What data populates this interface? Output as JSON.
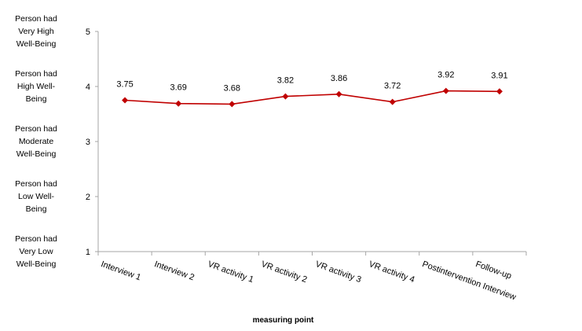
{
  "chart_data": {
    "type": "line",
    "categories": [
      "Interview 1",
      "Interview 2",
      "VR activity 1",
      "VR activity 2",
      "VR activity 3",
      "VR activity 4",
      "Postintervention Interview",
      "Follow-up"
    ],
    "values": [
      3.75,
      3.69,
      3.68,
      3.82,
      3.86,
      3.72,
      3.92,
      3.91
    ],
    "data_labels": [
      "3.75",
      "3.69",
      "3.68",
      "3.82",
      "3.86",
      "3.72",
      "3.92",
      "3.91"
    ],
    "xlabel": "measuring point",
    "ylabel": "",
    "ylim": [
      1,
      5
    ],
    "yticks": [
      "1",
      "2",
      "3",
      "4",
      "5"
    ],
    "y_level_labels": [
      {
        "value": 5,
        "lines": [
          "Person had",
          "Very High",
          "Well-Being"
        ]
      },
      {
        "value": 4,
        "lines": [
          "Person had",
          "High Well-",
          "Being"
        ]
      },
      {
        "value": 3,
        "lines": [
          "Person had",
          "Moderate",
          "Well-Being"
        ]
      },
      {
        "value": 2,
        "lines": [
          "Person had",
          "Low Well-",
          "Being"
        ]
      },
      {
        "value": 1,
        "lines": [
          "Person had",
          "Very Low",
          "Well-Being"
        ]
      }
    ],
    "grid": false,
    "legend": "none",
    "series_color": "#C00000",
    "axis_color": "#A6A6A6"
  }
}
